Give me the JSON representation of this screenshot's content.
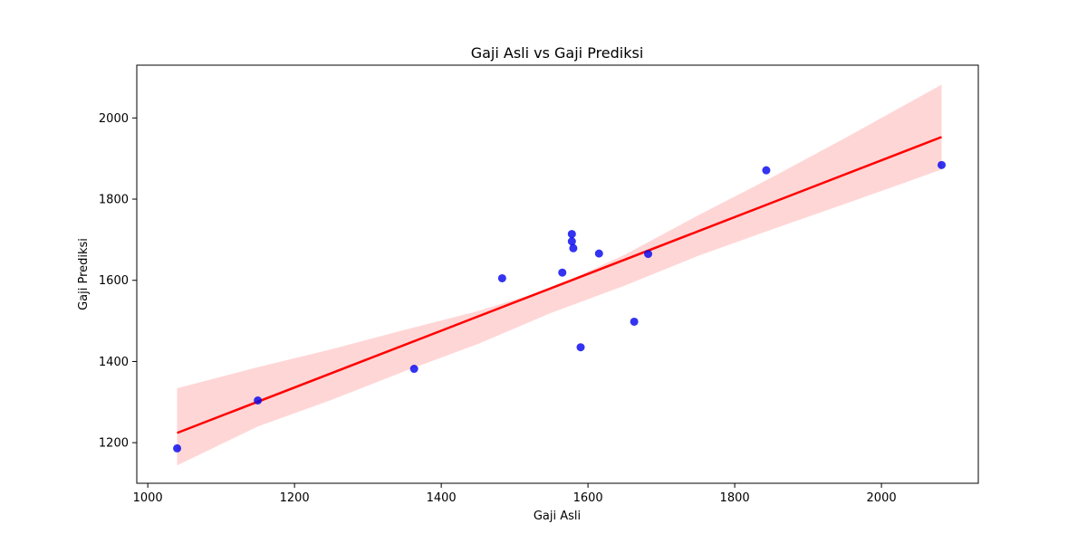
{
  "chart_data": {
    "type": "scatter",
    "title": "Gaji Asli vs Gaji Prediksi",
    "xlabel": "Gaji Asli",
    "ylabel": "Gaji Prediksi",
    "xlim": [
      985,
      2132
    ],
    "ylim": [
      1100,
      2130
    ],
    "xticks": [
      1000,
      1200,
      1400,
      1600,
      1800,
      2000
    ],
    "yticks": [
      1200,
      1400,
      1600,
      1800,
      2000
    ],
    "grid": false,
    "legend": "none",
    "points": [
      {
        "x": 1040,
        "y": 1186
      },
      {
        "x": 1150,
        "y": 1304
      },
      {
        "x": 1363,
        "y": 1382
      },
      {
        "x": 1483,
        "y": 1605
      },
      {
        "x": 1565,
        "y": 1619
      },
      {
        "x": 1578,
        "y": 1714
      },
      {
        "x": 1578,
        "y": 1696
      },
      {
        "x": 1580,
        "y": 1679
      },
      {
        "x": 1590,
        "y": 1435
      },
      {
        "x": 1615,
        "y": 1666
      },
      {
        "x": 1663,
        "y": 1498
      },
      {
        "x": 1682,
        "y": 1665
      },
      {
        "x": 1843,
        "y": 1871
      },
      {
        "x": 2082,
        "y": 1884
      }
    ],
    "regression_line": {
      "x": [
        1040,
        2082
      ],
      "y": [
        1224,
        1953
      ]
    },
    "confidence_band": {
      "x": [
        1040,
        1150,
        1250,
        1350,
        1450,
        1550,
        1650,
        1750,
        1850,
        1950,
        2082
      ],
      "upper": [
        1334,
        1386,
        1430,
        1478,
        1524,
        1580,
        1663,
        1760,
        1853,
        1950,
        2082
      ],
      "lower": [
        1144,
        1240,
        1305,
        1376,
        1443,
        1520,
        1587,
        1660,
        1725,
        1788,
        1873
      ]
    },
    "colors": {
      "points": "#0000ee",
      "line": "#ff0000",
      "band": "#ffd6d6"
    }
  }
}
